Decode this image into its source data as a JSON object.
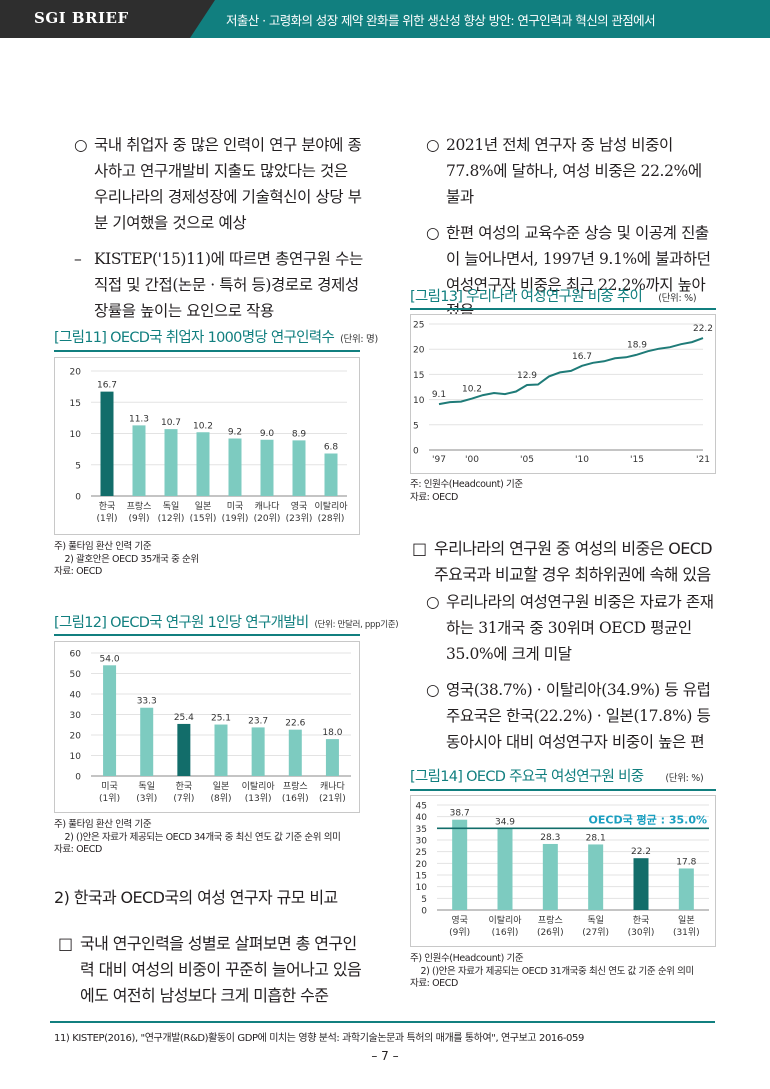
{
  "header": {
    "brand": "SGI BRIEF",
    "title": "저출산 · 고령화의 성장 제약 완화를 위한 생산성 향상 방안: 연구인력과 혁신의 관점에서"
  },
  "left_text": {
    "p1_marker": "○",
    "p1": "국내 취업자 중 많은 인력이 연구 분야에 종사하고 연구개발비 지출도 많았다는 것은 우리나라의 경제성장에 기술혁신이 상당 부분 기여했을 것으로 예상",
    "p2_marker": "–",
    "p2": "KISTEP('15)11)에 따르면 총연구원 수는 직접 및 간접(논문 · 특허 등)경로로 경제성장률을 높이는 요인으로 작용"
  },
  "fig11": {
    "title": "[그림11] OECD국 취업자 1000명당 연구인력수",
    "unit": "(단위: 명)",
    "notes": [
      "주) 풀타임 환산 인력 기준",
      "    2) 괄호안은 OECD 35개국 중 순위",
      "자료: OECD"
    ]
  },
  "fig12": {
    "title": "[그림12] OECD국 연구원 1인당 연구개발비",
    "unit": "(단위: 만달러, ppp기준)",
    "notes": [
      "주) 풀타임 환산 인력 기준",
      "    2) ()안은 자료가 제공되는 OECD 34개국 중 최신 연도 값 기준 순위 의미",
      "자료: OECD"
    ]
  },
  "left_subheading": "2) 한국과 OECD국의 여성 연구자 규모 비교",
  "left_section": {
    "marker": "□",
    "text": "국내 연구인력을 성별로 살펴보면 총 연구인력 대비 여성의 비중이 꾸준히 늘어나고 있음에도 여전히 남성보다 크게 미흡한 수준"
  },
  "right_text": {
    "p1_marker": "○",
    "p1": "2021년 전체 연구자 중 남성 비중이 77.8%에 달하나, 여성 비중은 22.2%에 불과",
    "p2_marker": "○",
    "p2": "한편 여성의 교육수준 상승 및 이공계 진출이 늘어나면서, 1997년 9.1%에 불과하던 여성연구자 비중은 최근 22.2%까지 높아졌음"
  },
  "fig13": {
    "title": "[그림13] 우리나라 여성연구원 비중 추이",
    "unit": "(단위: %)",
    "notes": [
      "주: 인원수(Headcount) 기준",
      "자료: OECD"
    ]
  },
  "right_section": {
    "marker": "□",
    "text": "우리나라의 연구원 중 여성의 비중은 OECD 주요국과 비교할 경우 최하위권에 속해 있음",
    "p1_marker": "○",
    "p1": "우리나라의 여성연구원 비중은 자료가 존재하는 31개국 중 30위며 OECD 평균인 35.0%에 크게 미달",
    "p2_marker": "○",
    "p2": "영국(38.7%) · 이탈리아(34.9%) 등 유럽 주요국은 한국(22.2%) · 일본(17.8%) 등 동아시아 대비 여성연구자 비중이 높은 편"
  },
  "fig14": {
    "title": "[그림14] OECD 주요국 여성연구원 비중",
    "unit": "(단위: %)",
    "notes": [
      "주) 인원수(Headcount) 기준",
      "    2) ()안은 자료가 제공되는 OECD 31개국중 최신 연도 값 기준 순위 의미",
      "자료: OECD"
    ]
  },
  "footnote": "11) KISTEP(2016), \"연구개발(R&D)활동이 GDP에 미치는 영향 분석: 과학기술논문과 특허의 매개를 통하여\", 연구보고 2016-059",
  "page_number": "–  7 –",
  "colors": {
    "accent": "#117f7f",
    "bar_light": "#7dcbc0",
    "bar_dark": "#126d6a",
    "avg_label": "#1a9fc0"
  },
  "chart_data": [
    {
      "id": "fig11",
      "type": "bar",
      "title": "[그림11] OECD국 취업자 1000명당 연구인력수",
      "categories": [
        "한국",
        "프랑스",
        "독일",
        "일본",
        "미국",
        "캐나다",
        "영국",
        "이탈리아"
      ],
      "sub_labels": [
        "(1위)",
        "(9위)",
        "(12위)",
        "(15위)",
        "(19위)",
        "(20위)",
        "(23위)",
        "(28위)"
      ],
      "values": [
        16.7,
        11.3,
        10.7,
        10.2,
        9.2,
        9.0,
        8.9,
        6.8
      ],
      "value_labels": [
        "16.7",
        "11.3",
        "10.7",
        "10.2",
        "9.2",
        "9.0",
        "8.9",
        "6.8"
      ],
      "highlight": "한국",
      "ylim": [
        0,
        20
      ],
      "yticks": [
        0,
        5,
        10,
        15,
        20
      ]
    },
    {
      "id": "fig12",
      "type": "bar",
      "title": "[그림12] OECD국 연구원 1인당 연구개발비",
      "categories": [
        "미국",
        "독일",
        "한국",
        "일본",
        "이탈리아",
        "프랑스",
        "캐나다"
      ],
      "sub_labels": [
        "(1위)",
        "(3위)",
        "(7위)",
        "(8위)",
        "(13위)",
        "(16위)",
        "(21위)"
      ],
      "values": [
        54.0,
        33.3,
        25.4,
        25.1,
        23.7,
        22.6,
        18.0
      ],
      "value_labels": [
        "54.0",
        "33.3",
        "25.4",
        "25.1",
        "23.7",
        "22.6",
        "18.0"
      ],
      "highlight": "한국",
      "ylim": [
        0,
        60
      ],
      "yticks": [
        0,
        10,
        20,
        30,
        40,
        50,
        60
      ]
    },
    {
      "id": "fig13",
      "type": "line",
      "title": "[그림13] 우리나라 여성연구원 비중 추이",
      "x": [
        1997,
        1998,
        1999,
        2000,
        2001,
        2002,
        2003,
        2004,
        2005,
        2006,
        2007,
        2008,
        2009,
        2010,
        2011,
        2012,
        2013,
        2014,
        2015,
        2016,
        2017,
        2018,
        2019,
        2020,
        2021
      ],
      "values": [
        9.1,
        9.5,
        9.6,
        10.2,
        10.9,
        11.3,
        11.1,
        11.6,
        12.9,
        13.0,
        14.6,
        15.4,
        15.7,
        16.7,
        17.3,
        17.6,
        18.2,
        18.4,
        18.9,
        19.6,
        20.1,
        20.4,
        21.0,
        21.4,
        22.2
      ],
      "labeled_points": [
        {
          "x": 1997,
          "y": 9.1,
          "label": "9.1"
        },
        {
          "x": 2000,
          "y": 10.2,
          "label": "10.2"
        },
        {
          "x": 2005,
          "y": 12.9,
          "label": "12.9"
        },
        {
          "x": 2010,
          "y": 16.7,
          "label": "16.7"
        },
        {
          "x": 2015,
          "y": 18.9,
          "label": "18.9"
        },
        {
          "x": 2021,
          "y": 22.2,
          "label": "22.2"
        }
      ],
      "xtick_values": [
        1997,
        2000,
        2005,
        2010,
        2015,
        2021
      ],
      "xtick_labels": [
        "'97",
        "'00",
        "'05",
        "'10",
        "'15",
        "'21"
      ],
      "ylim": [
        0,
        25
      ],
      "yticks": [
        0,
        5,
        10,
        15,
        20,
        25
      ]
    },
    {
      "id": "fig14",
      "type": "bar",
      "title": "[그림14] OECD 주요국 여성연구원 비중",
      "categories": [
        "영국",
        "이탈리아",
        "프랑스",
        "독일",
        "한국",
        "일본"
      ],
      "sub_labels": [
        "(9위)",
        "(16위)",
        "(26위)",
        "(27위)",
        "(30위)",
        "(31위)"
      ],
      "values": [
        38.7,
        34.9,
        28.3,
        28.1,
        22.2,
        17.8
      ],
      "value_labels": [
        "38.7",
        "34.9",
        "28.3",
        "28.1",
        "22.2",
        "17.8"
      ],
      "highlight": "한국",
      "reference_line": {
        "value": 35.0,
        "label": "OECD국 평균 : 35.0%"
      },
      "ylim": [
        0,
        45
      ],
      "yticks": [
        0,
        5,
        10,
        15,
        20,
        25,
        30,
        35,
        40,
        45
      ]
    }
  ]
}
